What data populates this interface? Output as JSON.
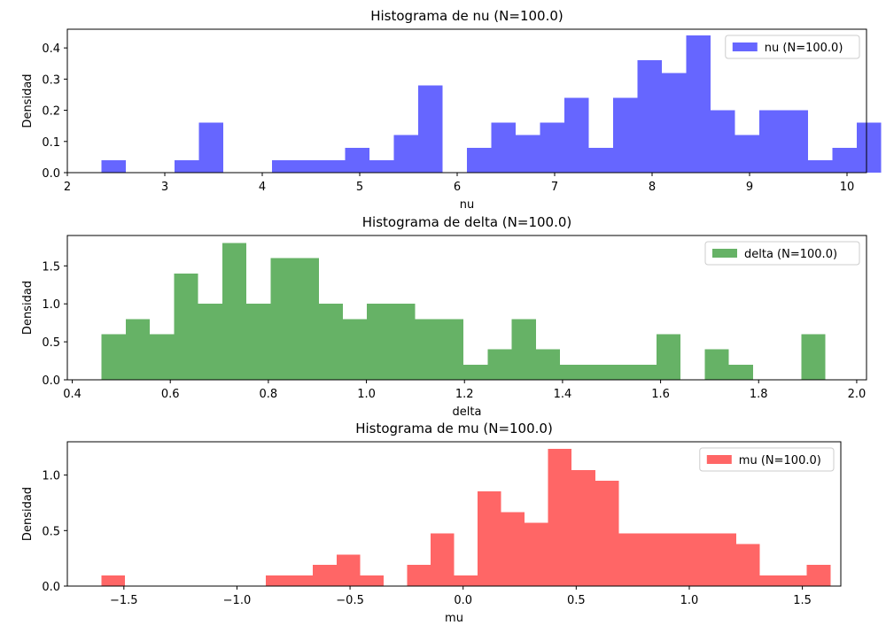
{
  "chart_data": [
    {
      "type": "bar",
      "title": "Histograma de nu (N=100.0)",
      "xlabel": "nu",
      "ylabel": "Densidad",
      "xlim": [
        2.0,
        10.2
      ],
      "ylim": [
        0,
        0.46
      ],
      "xticks": [
        2,
        3,
        4,
        5,
        6,
        7,
        8,
        9,
        10
      ],
      "xtick_labels": [
        "2",
        "3",
        "4",
        "5",
        "6",
        "7",
        "8",
        "9",
        "10"
      ],
      "yticks": [
        0.0,
        0.1,
        0.2,
        0.3,
        0.4
      ],
      "ytick_labels": [
        "0.0",
        "0.1",
        "0.2",
        "0.3",
        "0.4"
      ],
      "grid": false,
      "legend_position": "top-right",
      "series": [
        {
          "name": "nu (N=100.0)",
          "color": "#6666ff",
          "bin_start": 2.35,
          "bin_width": 0.25,
          "values": [
            0.04,
            0,
            0,
            0.04,
            0.16,
            0,
            0,
            0.04,
            0.04,
            0.04,
            0.08,
            0.04,
            0.12,
            0.28,
            0,
            0.08,
            0.16,
            0.12,
            0.16,
            0.24,
            0.08,
            0.24,
            0.36,
            0.32,
            0.44,
            0.2,
            0.12,
            0.2,
            0.2,
            0.04,
            0.08,
            0.16
          ]
        }
      ]
    },
    {
      "type": "bar",
      "title": "Histograma de delta (N=100.0)",
      "xlabel": "delta",
      "ylabel": "Densidad",
      "xlim": [
        0.39,
        2.02
      ],
      "ylim": [
        0,
        1.9
      ],
      "xticks": [
        0.4,
        0.6,
        0.8,
        1.0,
        1.2,
        1.4,
        1.6,
        1.8,
        2.0
      ],
      "xtick_labels": [
        "0.4",
        "0.6",
        "0.8",
        "1.0",
        "1.2",
        "1.4",
        "1.6",
        "1.8",
        "2.0"
      ],
      "yticks": [
        0.0,
        0.5,
        1.0,
        1.5
      ],
      "ytick_labels": [
        "0.0",
        "0.5",
        "1.0",
        "1.5"
      ],
      "grid": false,
      "legend_position": "top-right",
      "series": [
        {
          "name": "delta (N=100.0)",
          "color": "#66b266",
          "bin_start": 0.46,
          "bin_width": 0.0492,
          "values": [
            0.6,
            0.8,
            0.6,
            1.4,
            1.0,
            1.8,
            1.0,
            1.6,
            1.6,
            1.0,
            0.8,
            1.0,
            1.0,
            0.8,
            0.8,
            0.2,
            0.4,
            0.8,
            0.4,
            0.2,
            0.2,
            0.2,
            0.2,
            0.6,
            0,
            0.4,
            0.2,
            0,
            0,
            0.6
          ]
        }
      ]
    },
    {
      "type": "bar",
      "title": "Histograma de mu (N=100.0)",
      "xlabel": "mu",
      "ylabel": "Densidad",
      "xlim": [
        -1.75,
        1.67
      ],
      "ylim": [
        0,
        1.3
      ],
      "xticks": [
        -1.5,
        -1.0,
        -0.5,
        0.0,
        0.5,
        1.0,
        1.5
      ],
      "xtick_labels": [
        "−1.5",
        "−1.0",
        "−0.5",
        "0.0",
        "0.5",
        "1.0",
        "1.5"
      ],
      "yticks": [
        0.0,
        0.5,
        1.0
      ],
      "ytick_labels": [
        "0.0",
        "0.5",
        "1.0"
      ],
      "grid": false,
      "legend_position": "top-right",
      "series": [
        {
          "name": "mu (N=100.0)",
          "color": "#ff6666",
          "bin_start": -1.6,
          "bin_width": 0.104,
          "values": [
            0.095,
            0,
            0,
            0,
            0,
            0,
            0,
            0.095,
            0.095,
            0.19,
            0.285,
            0.095,
            0,
            0.19,
            0.475,
            0.095,
            0.855,
            0.665,
            0.57,
            1.235,
            1.045,
            0.95,
            0.475,
            0.475,
            0.475,
            0.475,
            0.475,
            0.38,
            0.095,
            0.095,
            0.19
          ]
        }
      ]
    }
  ]
}
